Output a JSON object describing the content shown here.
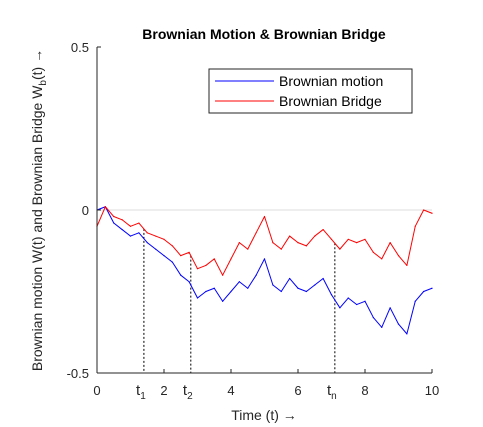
{
  "chart_data": {
    "type": "line",
    "title": "Brownian Motion & Brownian Bridge",
    "xlabel": "Time (t) →",
    "ylabel": "Brownian motion W(t) and Brownian Bridge W",
    "ylabel_sub": "b",
    "ylabel_tail": "(t) →",
    "xlim": [
      0,
      10
    ],
    "ylim": [
      -0.5,
      0.5
    ],
    "x_ticks": [
      0,
      2,
      4,
      6,
      8,
      10
    ],
    "y_ticks": [
      -0.5,
      0,
      0.5
    ],
    "x_tick_labels": [
      "0",
      "2",
      "4",
      "6",
      "8",
      "10"
    ],
    "y_tick_labels": [
      "-0.5",
      "0",
      "0.5"
    ],
    "legend_position": "top-right",
    "grid": false,
    "x": [
      0,
      0.25,
      0.5,
      0.75,
      1.0,
      1.25,
      1.5,
      1.75,
      2.0,
      2.25,
      2.5,
      2.75,
      3.0,
      3.25,
      3.5,
      3.75,
      4.0,
      4.25,
      4.5,
      4.75,
      5.0,
      5.25,
      5.5,
      5.75,
      6.0,
      6.25,
      6.5,
      6.75,
      7.0,
      7.25,
      7.5,
      7.75,
      8.0,
      8.25,
      8.5,
      8.75,
      9.0,
      9.25,
      9.5,
      9.75,
      10.0
    ],
    "series": [
      {
        "name": "Brownian motion",
        "color": "#0000ff",
        "values": [
          0.0,
          0.01,
          -0.04,
          -0.06,
          -0.08,
          -0.07,
          -0.1,
          -0.12,
          -0.14,
          -0.16,
          -0.2,
          -0.22,
          -0.27,
          -0.25,
          -0.24,
          -0.28,
          -0.25,
          -0.22,
          -0.24,
          -0.2,
          -0.15,
          -0.23,
          -0.25,
          -0.21,
          -0.24,
          -0.25,
          -0.23,
          -0.21,
          -0.26,
          -0.3,
          -0.27,
          -0.29,
          -0.28,
          -0.33,
          -0.36,
          -0.3,
          -0.35,
          -0.38,
          -0.28,
          -0.25,
          -0.24
        ]
      },
      {
        "name": "Brownian Bridge",
        "color": "#ff0000",
        "values": [
          -0.05,
          0.01,
          -0.02,
          -0.03,
          -0.05,
          -0.04,
          -0.07,
          -0.08,
          -0.09,
          -0.11,
          -0.14,
          -0.13,
          -0.18,
          -0.17,
          -0.15,
          -0.2,
          -0.15,
          -0.1,
          -0.12,
          -0.07,
          -0.02,
          -0.1,
          -0.12,
          -0.08,
          -0.1,
          -0.11,
          -0.08,
          -0.06,
          -0.09,
          -0.12,
          -0.09,
          -0.1,
          -0.09,
          -0.13,
          -0.15,
          -0.1,
          -0.14,
          -0.17,
          -0.05,
          0.0,
          -0.01
        ]
      }
    ],
    "annotations": [
      {
        "x": 1.4,
        "label": "t",
        "sub": "1"
      },
      {
        "x": 2.8,
        "label": "t",
        "sub": "2"
      },
      {
        "x": 7.1,
        "label": "t",
        "sub": "n"
      }
    ]
  }
}
